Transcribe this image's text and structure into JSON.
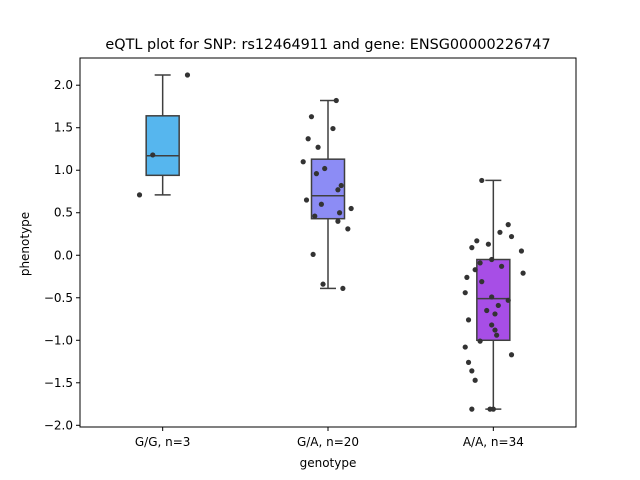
{
  "chart_data": {
    "type": "box",
    "title": "eQTL plot for SNP: rs12464911 and gene: ENSG00000226747",
    "xlabel": "genotype",
    "ylabel": "phenotype",
    "ylim": [
      -2.02,
      2.32
    ],
    "yticks": [
      2.0,
      1.5,
      1.0,
      0.5,
      0.0,
      -0.5,
      -1.0,
      -1.5,
      -2.0
    ],
    "ytick_labels": [
      "2.0",
      "1.5",
      "1.0",
      "0.5",
      "0.0",
      "−0.5",
      "−1.0",
      "−1.5",
      "−2.0"
    ],
    "grid": false,
    "categories": [
      "G/G, n=3",
      "G/A, n=20",
      "A/A, n=34"
    ],
    "boxes": [
      {
        "category": "G/G, n=3",
        "color": "#56b6ee",
        "q1": 0.94,
        "median": 1.17,
        "q3": 1.64,
        "whisker_low": 0.71,
        "whisker_high": 2.12
      },
      {
        "category": "G/A, n=20",
        "color": "#8c8cf5",
        "q1": 0.43,
        "median": 0.7,
        "q3": 1.13,
        "whisker_low": -0.39,
        "whisker_high": 1.82
      },
      {
        "category": "A/A, n=34",
        "color": "#a74ee6",
        "q1": -1.0,
        "median": -0.51,
        "q3": -0.05,
        "whisker_low": -1.81,
        "whisker_high": 0.88
      }
    ],
    "points": [
      [
        {
          "x": -0.14,
          "y": 0.71
        },
        {
          "x": -0.06,
          "y": 1.18
        },
        {
          "x": 0.15,
          "y": 2.12
        }
      ],
      [
        {
          "x": 0.05,
          "y": 1.82
        },
        {
          "x": -0.1,
          "y": 1.63
        },
        {
          "x": 0.03,
          "y": 1.49
        },
        {
          "x": -0.12,
          "y": 1.37
        },
        {
          "x": -0.06,
          "y": 1.27
        },
        {
          "x": -0.15,
          "y": 1.1
        },
        {
          "x": -0.02,
          "y": 1.02
        },
        {
          "x": -0.07,
          "y": 0.96
        },
        {
          "x": 0.08,
          "y": 0.82
        },
        {
          "x": 0.06,
          "y": 0.77
        },
        {
          "x": -0.13,
          "y": 0.65
        },
        {
          "x": -0.04,
          "y": 0.6
        },
        {
          "x": 0.14,
          "y": 0.55
        },
        {
          "x": 0.07,
          "y": 0.5
        },
        {
          "x": -0.08,
          "y": 0.46
        },
        {
          "x": 0.06,
          "y": 0.4
        },
        {
          "x": 0.12,
          "y": 0.31
        },
        {
          "x": -0.09,
          "y": 0.01
        },
        {
          "x": -0.03,
          "y": -0.34
        },
        {
          "x": 0.09,
          "y": -0.39
        }
      ],
      [
        {
          "x": -0.07,
          "y": 0.88
        },
        {
          "x": 0.09,
          "y": 0.36
        },
        {
          "x": 0.04,
          "y": 0.27
        },
        {
          "x": 0.11,
          "y": 0.22
        },
        {
          "x": -0.1,
          "y": 0.17
        },
        {
          "x": -0.03,
          "y": 0.13
        },
        {
          "x": -0.13,
          "y": 0.09
        },
        {
          "x": 0.17,
          "y": 0.05
        },
        {
          "x": -0.01,
          "y": -0.05
        },
        {
          "x": -0.08,
          "y": -0.09
        },
        {
          "x": 0.05,
          "y": -0.13
        },
        {
          "x": -0.11,
          "y": -0.17
        },
        {
          "x": 0.18,
          "y": -0.21
        },
        {
          "x": -0.16,
          "y": -0.26
        },
        {
          "x": -0.07,
          "y": -0.31
        },
        {
          "x": -0.17,
          "y": -0.44
        },
        {
          "x": -0.01,
          "y": -0.49
        },
        {
          "x": 0.09,
          "y": -0.53
        },
        {
          "x": 0.03,
          "y": -0.59
        },
        {
          "x": -0.04,
          "y": -0.65
        },
        {
          "x": 0.01,
          "y": -0.69
        },
        {
          "x": -0.15,
          "y": -0.76
        },
        {
          "x": -0.01,
          "y": -0.82
        },
        {
          "x": 0.01,
          "y": -0.88
        },
        {
          "x": 0.02,
          "y": -0.94
        },
        {
          "x": -0.08,
          "y": -1.01
        },
        {
          "x": -0.17,
          "y": -1.08
        },
        {
          "x": 0.11,
          "y": -1.17
        },
        {
          "x": -0.15,
          "y": -1.26
        },
        {
          "x": -0.13,
          "y": -1.36
        },
        {
          "x": -0.11,
          "y": -1.47
        },
        {
          "x": -0.13,
          "y": -1.81
        },
        {
          "x": -0.02,
          "y": -1.81
        },
        {
          "x": 0.0,
          "y": -1.81
        }
      ]
    ]
  }
}
